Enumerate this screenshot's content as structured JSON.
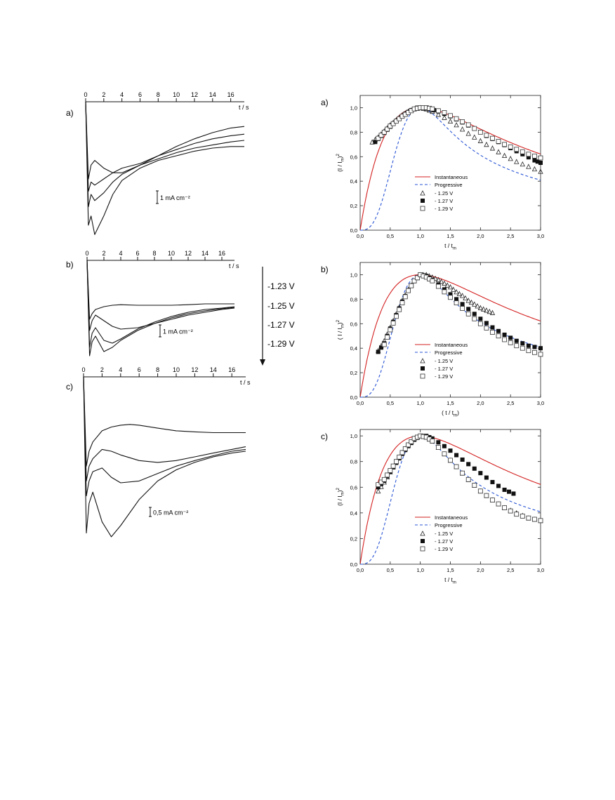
{
  "figure": {
    "voltage_legend": [
      "-1.23 V",
      "-1.25 V",
      "-1.27 V",
      "-1.29 V"
    ]
  },
  "chart_data": [
    {
      "panel": "a)",
      "type": "line",
      "xlabel": "t / s",
      "xticks": [
        0,
        2,
        4,
        6,
        8,
        10,
        12,
        14,
        16
      ],
      "xlim": [
        0,
        17.5
      ],
      "yinverted": true,
      "scale_bar": "1 mA cm⁻²",
      "series": [
        {
          "t": [
            0,
            0.3,
            0.6,
            1.0,
            2.0,
            3.0,
            4.0,
            6.0,
            8.0,
            10.0,
            12.0,
            14.0,
            16.0,
            17.5
          ],
          "j": [
            0,
            2.5,
            2.05,
            1.9,
            2.15,
            2.3,
            2.3,
            2.05,
            1.75,
            1.45,
            1.2,
            1.0,
            0.85,
            0.8
          ]
        },
        {
          "t": [
            0,
            0.3,
            0.6,
            1.0,
            2.0,
            3.0,
            4.0,
            6.0,
            8.0,
            10.0,
            12.0,
            14.0,
            16.0,
            17.5
          ],
          "j": [
            0,
            2.9,
            2.6,
            2.7,
            2.5,
            2.3,
            2.15,
            2.0,
            1.75,
            1.55,
            1.35,
            1.2,
            1.1,
            1.05
          ]
        },
        {
          "t": [
            0,
            0.3,
            0.6,
            1.0,
            2.0,
            3.0,
            4.0,
            6.0,
            8.0,
            10.0,
            12.0,
            14.0,
            16.0,
            17.5
          ],
          "j": [
            0,
            3.4,
            3.0,
            3.2,
            2.95,
            2.6,
            2.35,
            2.05,
            1.85,
            1.65,
            1.5,
            1.4,
            1.3,
            1.25
          ]
        },
        {
          "t": [
            0,
            0.3,
            0.6,
            1.0,
            2.0,
            3.0,
            4.0,
            6.0,
            8.0,
            10.0,
            12.0,
            14.0,
            16.0,
            17.5
          ],
          "j": [
            0,
            4.0,
            3.7,
            4.3,
            3.7,
            3.0,
            2.55,
            2.15,
            1.9,
            1.75,
            1.6,
            1.5,
            1.45,
            1.45
          ]
        }
      ]
    },
    {
      "panel": "b)",
      "type": "line",
      "xlabel": "t / s",
      "xticks": [
        0,
        2,
        4,
        6,
        8,
        10,
        12,
        14,
        16
      ],
      "xlim": [
        0,
        17.5
      ],
      "yinverted": true,
      "scale_bar": "1 mA cm⁻²",
      "series": [
        {
          "t": [
            0,
            0.3,
            0.6,
            1.0,
            2.0,
            3.0,
            4.0,
            6.0,
            8.0,
            10.0,
            12.0,
            14.0,
            16.0,
            17.5
          ],
          "j": [
            0,
            2.1,
            1.9,
            1.75,
            1.65,
            1.6,
            1.58,
            1.6,
            1.6,
            1.6,
            1.58,
            1.55,
            1.55,
            1.55
          ]
        },
        {
          "t": [
            0,
            0.3,
            0.6,
            1.0,
            2.0,
            3.0,
            4.0,
            6.0,
            8.0,
            10.0,
            12.0,
            14.0,
            16.0,
            17.5
          ],
          "j": [
            0,
            2.5,
            2.15,
            1.95,
            2.15,
            2.35,
            2.45,
            2.4,
            2.25,
            2.1,
            1.95,
            1.85,
            1.75,
            1.7
          ]
        },
        {
          "t": [
            0,
            0.3,
            0.6,
            1.0,
            2.0,
            3.0,
            4.0,
            6.0,
            8.0,
            10.0,
            12.0,
            14.0,
            16.0,
            17.5
          ],
          "j": [
            0,
            3.1,
            2.6,
            2.4,
            2.85,
            2.95,
            2.8,
            2.45,
            2.2,
            2.0,
            1.85,
            1.75,
            1.7,
            1.65
          ]
        },
        {
          "t": [
            0,
            0.3,
            0.6,
            1.0,
            2.0,
            3.0,
            4.0,
            6.0,
            8.0,
            10.0,
            12.0,
            14.0,
            16.0,
            17.5
          ],
          "j": [
            0,
            3.4,
            2.9,
            2.7,
            3.25,
            3.1,
            2.85,
            2.5,
            2.25,
            2.05,
            1.9,
            1.8,
            1.72,
            1.68
          ]
        }
      ]
    },
    {
      "panel": "c)",
      "type": "line",
      "xlabel": "t / s",
      "xticks": [
        0,
        2,
        4,
        6,
        8,
        10,
        12,
        14,
        16
      ],
      "xlim": [
        0,
        17.5
      ],
      "yinverted": true,
      "scale_bar": "0,5 mA cm⁻²",
      "series": [
        {
          "t": [
            0,
            0.3,
            0.6,
            1.0,
            2.0,
            3.0,
            4.0,
            5.0,
            6.0,
            8.0,
            10.0,
            12.0,
            14.0,
            16.0,
            17.5
          ],
          "j": [
            0,
            2.4,
            2.0,
            1.75,
            1.45,
            1.35,
            1.3,
            1.28,
            1.3,
            1.38,
            1.45,
            1.48,
            1.5,
            1.5,
            1.5
          ]
        },
        {
          "t": [
            0,
            0.3,
            0.6,
            1.0,
            2.0,
            3.0,
            4.0,
            6.0,
            8.0,
            10.0,
            12.0,
            14.0,
            16.0,
            17.5
          ],
          "j": [
            0,
            2.8,
            2.4,
            2.2,
            1.95,
            2.0,
            2.1,
            2.25,
            2.3,
            2.25,
            2.15,
            2.05,
            1.95,
            1.88
          ]
        },
        {
          "t": [
            0,
            0.3,
            0.6,
            1.0,
            2.0,
            3.0,
            4.0,
            6.0,
            8.0,
            10.0,
            12.0,
            14.0,
            16.0,
            17.5
          ],
          "j": [
            0,
            3.2,
            2.8,
            2.55,
            2.45,
            2.7,
            2.85,
            2.8,
            2.6,
            2.4,
            2.25,
            2.12,
            2.0,
            1.95
          ]
        },
        {
          "t": [
            0,
            0.3,
            0.6,
            1.0,
            2.0,
            3.0,
            4.0,
            6.0,
            8.0,
            10.0,
            12.0,
            14.0,
            16.0,
            17.5
          ],
          "j": [
            0,
            4.2,
            3.4,
            3.1,
            3.9,
            4.3,
            4.0,
            3.3,
            2.8,
            2.5,
            2.3,
            2.15,
            2.05,
            2.0
          ]
        }
      ]
    },
    {
      "panel": "a)",
      "type": "line",
      "xlabel": "t / t",
      "xlabel_sub": "m",
      "ylabel": "(I / I",
      "ylabel_sub": "m",
      "ylabel_tail": ")",
      "ylabel_sup": "2",
      "xlim": [
        0,
        3.0
      ],
      "ylim": [
        0,
        1.1
      ],
      "xticks": [
        "0,0",
        "0,5",
        "1,0",
        "1,5",
        "2,0",
        "2,5",
        "3,0"
      ],
      "yticks": [
        "0,0",
        "0,2",
        "0,4",
        "0,6",
        "0,8",
        "1,0"
      ],
      "legend": [
        "Instantaneous",
        "Progressive",
        "- 1.25 V",
        "- 1.27 V",
        "- 1.29 V"
      ],
      "series": [
        {
          "name": "Instantaneous",
          "kind": "model",
          "color": "#d42020",
          "dash": "solid"
        },
        {
          "name": "Progressive",
          "kind": "model",
          "color": "#2a55d4",
          "dash": "dashed"
        },
        {
          "name": "- 1.25 V",
          "marker": "open-triangle",
          "x": [
            0.2,
            0.3,
            0.4,
            0.5,
            0.6,
            0.7,
            0.8,
            0.9,
            1.0,
            1.1,
            1.2,
            1.4,
            1.6,
            1.8,
            2.0,
            2.2,
            2.4,
            2.6,
            2.8,
            3.0
          ],
          "y": [
            0.72,
            0.76,
            0.81,
            0.86,
            0.9,
            0.94,
            0.97,
            0.99,
            1.0,
            0.99,
            0.97,
            0.92,
            0.86,
            0.79,
            0.73,
            0.67,
            0.61,
            0.56,
            0.52,
            0.48
          ]
        },
        {
          "name": "- 1.27 V",
          "marker": "filled-square",
          "x": [
            0.25,
            0.35,
            0.45,
            0.55,
            0.65,
            0.75,
            0.85,
            0.95,
            1.05,
            1.15,
            1.3,
            1.5,
            1.7,
            1.9,
            2.1,
            2.3,
            2.5,
            2.7,
            2.9,
            3.0
          ],
          "y": [
            0.72,
            0.77,
            0.82,
            0.87,
            0.91,
            0.95,
            0.98,
            1.0,
            1.0,
            0.99,
            0.97,
            0.93,
            0.88,
            0.83,
            0.77,
            0.72,
            0.67,
            0.62,
            0.57,
            0.55
          ]
        },
        {
          "name": "- 1.29 V",
          "marker": "open-square",
          "x": [
            0.3,
            0.4,
            0.5,
            0.6,
            0.7,
            0.8,
            0.9,
            1.0,
            1.1,
            1.2,
            1.4,
            1.6,
            1.8,
            2.0,
            2.2,
            2.4,
            2.6,
            2.8,
            3.0
          ],
          "y": [
            0.75,
            0.8,
            0.85,
            0.89,
            0.93,
            0.96,
            0.99,
            1.0,
            1.0,
            0.99,
            0.96,
            0.91,
            0.86,
            0.8,
            0.75,
            0.7,
            0.66,
            0.62,
            0.59
          ]
        }
      ]
    },
    {
      "panel": "b)",
      "type": "line",
      "xlabel": "( t / t",
      "xlabel_sub": "m",
      "xlabel_tail": ")",
      "ylabel": "( I / I",
      "ylabel_sub": "m",
      "ylabel_tail": ")",
      "ylabel_sup": "2",
      "xlim": [
        0,
        3.0
      ],
      "ylim": [
        0,
        1.1
      ],
      "xticks": [
        "0,0",
        "0,5",
        "1,0",
        "1,5",
        "2,0",
        "2,5",
        "3,0"
      ],
      "yticks": [
        "0,0",
        "0,2",
        "0,4",
        "0,6",
        "0,8",
        "1,0"
      ],
      "legend": [
        "Instantaneous",
        "Progressive",
        "- 1.25 V",
        "- 1.27 V",
        "- 1.29 V"
      ],
      "series": [
        {
          "name": "Instantaneous",
          "kind": "model",
          "color": "#d42020",
          "dash": "solid"
        },
        {
          "name": "Progressive",
          "kind": "model",
          "color": "#2a55d4",
          "dash": "dashed"
        },
        {
          "name": "- 1.25 V",
          "marker": "open-triangle",
          "x": [
            0.3,
            0.4,
            0.5,
            0.6,
            0.7,
            0.8,
            0.9,
            1.0,
            1.1,
            1.2,
            1.3,
            1.4,
            1.5,
            1.6,
            1.7,
            1.8,
            1.9,
            2.0,
            2.1,
            2.2
          ],
          "y": [
            0.38,
            0.46,
            0.57,
            0.68,
            0.79,
            0.88,
            0.95,
            1.0,
            1.0,
            0.98,
            0.96,
            0.93,
            0.9,
            0.86,
            0.83,
            0.79,
            0.76,
            0.73,
            0.71,
            0.69
          ]
        },
        {
          "name": "- 1.27 V",
          "marker": "filled-square",
          "x": [
            0.3,
            0.4,
            0.5,
            0.6,
            0.7,
            0.8,
            0.9,
            1.0,
            1.1,
            1.2,
            1.4,
            1.6,
            1.8,
            2.0,
            2.2,
            2.4,
            2.6,
            2.8,
            3.0
          ],
          "y": [
            0.37,
            0.44,
            0.56,
            0.67,
            0.78,
            0.87,
            0.95,
            1.0,
            0.99,
            0.96,
            0.88,
            0.8,
            0.72,
            0.64,
            0.57,
            0.51,
            0.46,
            0.42,
            0.4
          ]
        },
        {
          "name": "- 1.29 V",
          "marker": "open-square",
          "x": [
            0.4,
            0.5,
            0.6,
            0.7,
            0.8,
            0.9,
            1.0,
            1.1,
            1.2,
            1.4,
            1.6,
            1.8,
            2.0,
            2.2,
            2.4,
            2.6,
            2.8,
            3.0
          ],
          "y": [
            0.43,
            0.55,
            0.66,
            0.77,
            0.87,
            0.95,
            1.0,
            0.98,
            0.95,
            0.86,
            0.77,
            0.68,
            0.6,
            0.53,
            0.47,
            0.42,
            0.38,
            0.35
          ]
        }
      ]
    },
    {
      "panel": "c)",
      "type": "line",
      "xlabel": "t / t",
      "xlabel_sub": "m",
      "ylabel": "(I / I",
      "ylabel_sub": "m",
      "ylabel_tail": ")",
      "ylabel_sup": "2",
      "xlim": [
        0,
        3.0
      ],
      "ylim": [
        0,
        1.05
      ],
      "xticks": [
        "0,0",
        "0,5",
        "1,0",
        "1,5",
        "2,0",
        "2,5",
        "3,0"
      ],
      "yticks": [
        "0,0",
        "0,2",
        "0,4",
        "0,6",
        "0,8",
        "1,0"
      ],
      "legend": [
        "Instantaneous",
        "Progressive",
        "- 1.25 V",
        "- 1.27 V",
        "- 1.29 V"
      ],
      "series": [
        {
          "name": "Instantaneous",
          "kind": "model",
          "color": "#d42020",
          "dash": "solid"
        },
        {
          "name": "Progressive",
          "kind": "model",
          "color": "#2a55d4",
          "dash": "dashed"
        },
        {
          "name": "- 1.25 V",
          "marker": "open-triangle",
          "x": [
            0.3,
            0.4,
            0.5,
            0.6,
            0.7,
            0.8,
            0.9,
            1.0,
            1.1,
            1.2,
            1.4,
            1.6,
            1.8,
            2.0,
            2.2,
            2.4,
            2.6,
            2.8,
            3.0
          ],
          "y": [
            0.57,
            0.64,
            0.72,
            0.8,
            0.87,
            0.93,
            0.98,
            1.0,
            0.99,
            0.96,
            0.86,
            0.76,
            0.66,
            0.57,
            0.5,
            0.44,
            0.4,
            0.36,
            0.34
          ]
        },
        {
          "name": "- 1.27 V",
          "marker": "filled-square",
          "x": [
            0.3,
            0.4,
            0.5,
            0.6,
            0.7,
            0.8,
            0.9,
            1.0,
            1.1,
            1.2,
            1.4,
            1.6,
            1.8,
            2.0,
            2.2,
            2.4,
            2.55
          ],
          "y": [
            0.6,
            0.65,
            0.72,
            0.79,
            0.86,
            0.92,
            0.97,
            1.0,
            1.0,
            0.98,
            0.92,
            0.85,
            0.78,
            0.71,
            0.64,
            0.58,
            0.55
          ]
        },
        {
          "name": "- 1.29 V",
          "marker": "open-square",
          "x": [
            0.3,
            0.4,
            0.5,
            0.6,
            0.7,
            0.8,
            0.9,
            1.0,
            1.1,
            1.2,
            1.4,
            1.6,
            1.8,
            2.0,
            2.2,
            2.4,
            2.6,
            2.8,
            3.0
          ],
          "y": [
            0.62,
            0.66,
            0.73,
            0.8,
            0.87,
            0.93,
            0.98,
            1.0,
            0.99,
            0.96,
            0.86,
            0.76,
            0.66,
            0.57,
            0.5,
            0.44,
            0.39,
            0.36,
            0.34
          ]
        }
      ]
    }
  ]
}
